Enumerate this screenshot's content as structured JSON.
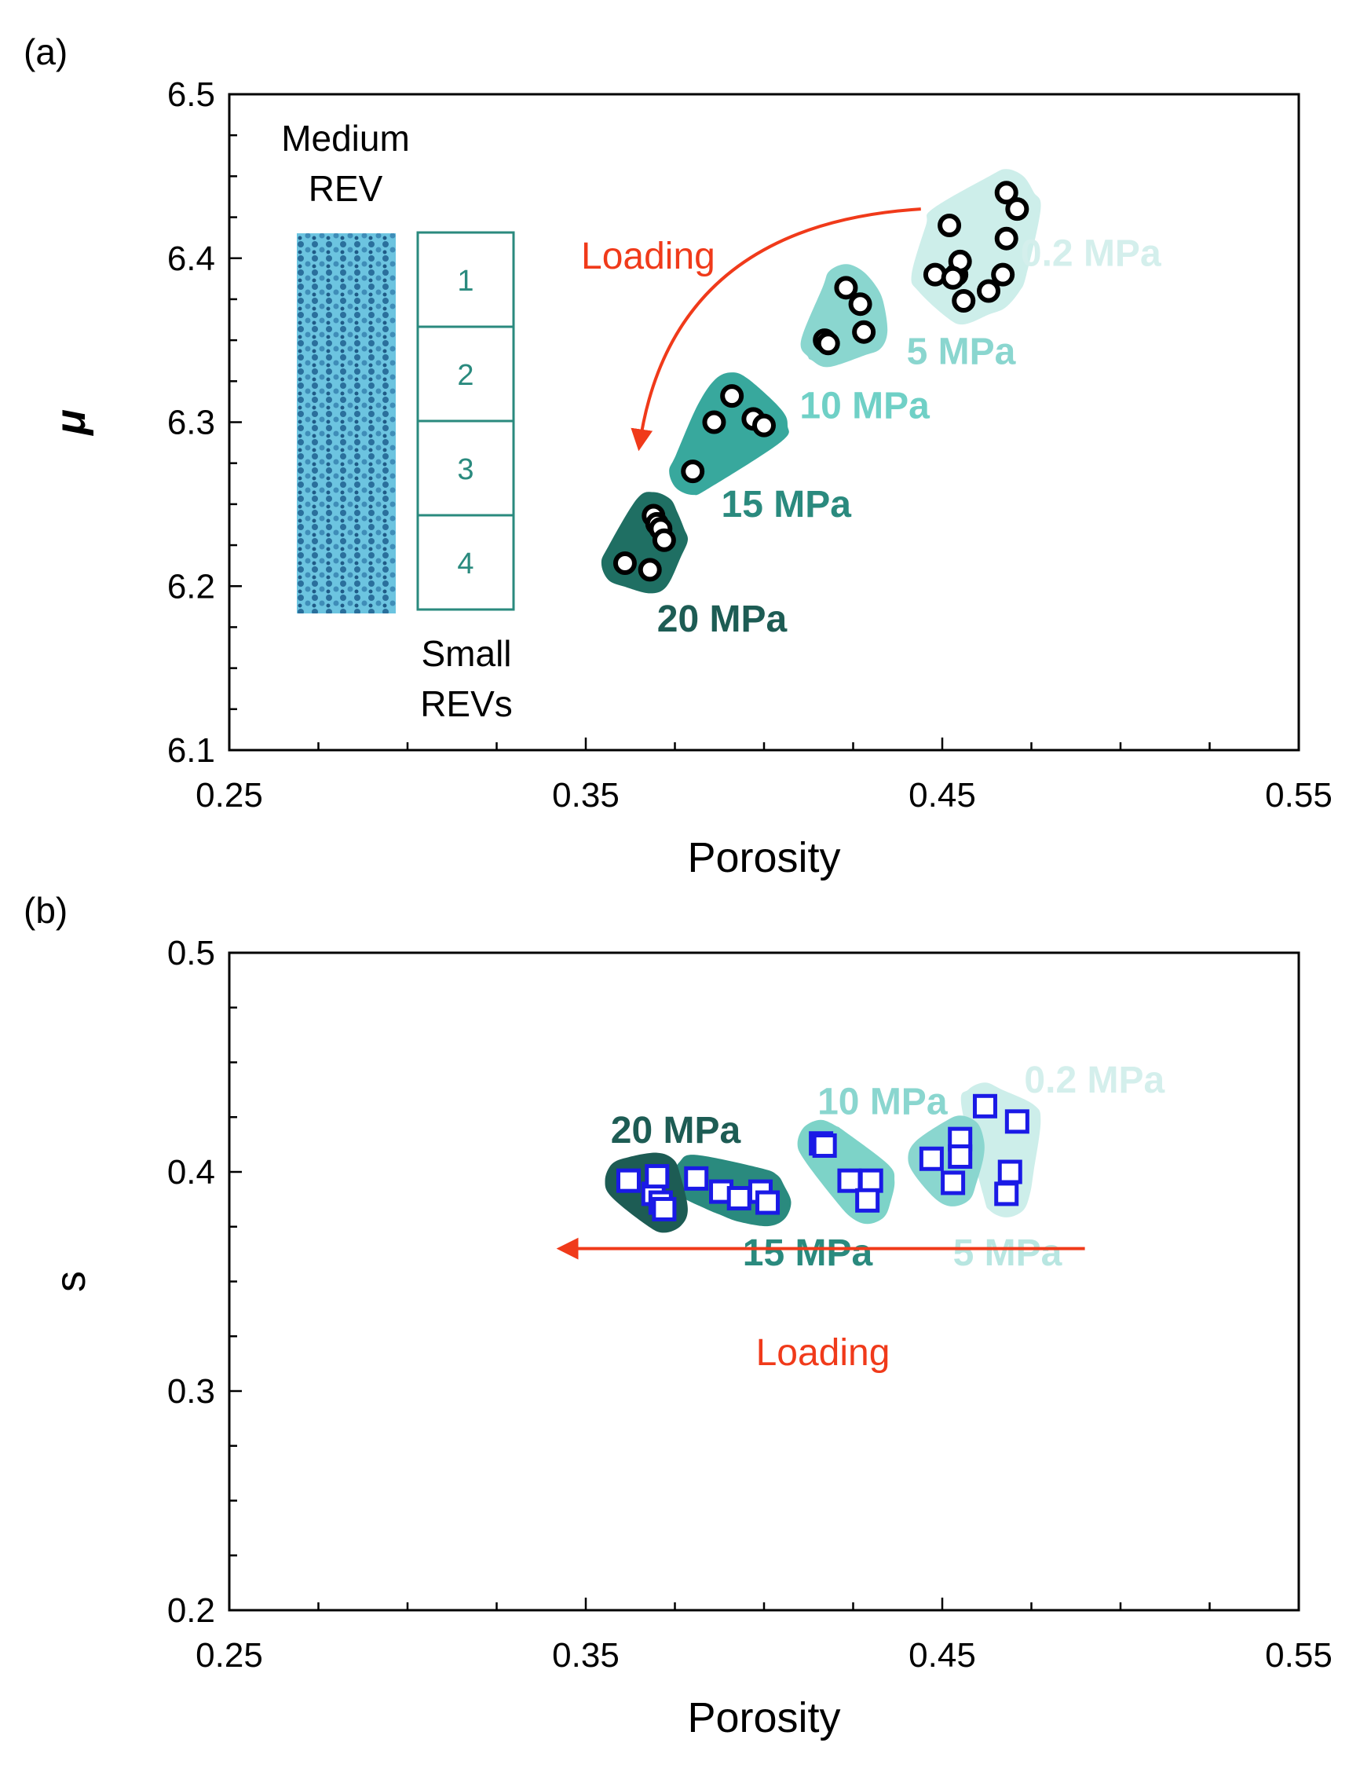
{
  "chart_data": [
    {
      "panel_label": "(a)",
      "type": "scatter",
      "xlabel": "Porosity",
      "ylabel": "μ",
      "xlim": [
        0.25,
        0.55
      ],
      "ylim": [
        6.1,
        6.5
      ],
      "xticks": [
        "0.25",
        "0.35",
        "0.45",
        "0.55"
      ],
      "yticks": [
        "6.1",
        "6.2",
        "6.3",
        "6.4",
        "6.5"
      ],
      "marker": "circle",
      "marker_edge_color": "#000000",
      "arrow": {
        "label": "Loading",
        "from": [
          0.444,
          6.43
        ],
        "to": [
          0.365,
          6.285
        ],
        "curved": true,
        "color": "#f03a1a"
      },
      "inset": {
        "title_line1": "Medium",
        "title_line2": "REV",
        "box_labels": [
          "1",
          "2",
          "3",
          "4"
        ],
        "caption_line1": "Small",
        "caption_line2": "REVs",
        "image_color": "#3a9ec4",
        "box_color": "#2a8a7e"
      },
      "series": [
        {
          "name": "0.2 MPa",
          "color": "#cdeeea",
          "label_color": "#d4efec",
          "label_pos": [
            0.472,
            6.403
          ],
          "x": [
            0.448,
            0.452,
            0.454,
            0.455,
            0.456,
            0.453,
            0.463,
            0.467,
            0.468,
            0.468,
            0.471
          ],
          "y": [
            6.39,
            6.42,
            6.39,
            6.398,
            6.374,
            6.388,
            6.38,
            6.39,
            6.412,
            6.44,
            6.43
          ]
        },
        {
          "name": "5 MPa",
          "color": "#8ad6cf",
          "label_color": "#8ad6cf",
          "label_pos": [
            0.44,
            6.343
          ],
          "x": [
            0.417,
            0.418,
            0.423,
            0.427,
            0.428
          ],
          "y": [
            6.35,
            6.348,
            6.382,
            6.372,
            6.355
          ]
        },
        {
          "name": "10 MPa",
          "color": "#38a89d",
          "label_color": "#6fd0c6",
          "label_pos": [
            0.41,
            6.31
          ],
          "x": [
            0.38,
            0.386,
            0.391,
            0.397,
            0.4
          ],
          "y": [
            6.27,
            6.3,
            6.316,
            6.302,
            6.298
          ]
        },
        {
          "name": "15 MPa",
          "color": "#1f6f63",
          "label_color": "#2a8a7e",
          "label_pos": [
            0.388,
            6.25
          ],
          "x": [
            0.361,
            0.368,
            0.369,
            0.37,
            0.371,
            0.372
          ],
          "y": [
            6.214,
            6.21,
            6.243,
            6.238,
            6.235,
            6.228
          ]
        },
        {
          "name": "20 MPa",
          "color": "#114a42",
          "label_color": "#1d5c54",
          "label_pos": [
            0.37,
            6.18
          ],
          "x": [],
          "y": []
        }
      ]
    },
    {
      "panel_label": "(b)",
      "type": "scatter",
      "xlabel": "Porosity",
      "ylabel": "s",
      "xlim": [
        0.25,
        0.55
      ],
      "ylim": [
        0.2,
        0.5
      ],
      "xticks": [
        "0.25",
        "0.35",
        "0.45",
        "0.55"
      ],
      "yticks": [
        "0.2",
        "0.3",
        "0.4",
        "0.5"
      ],
      "marker": "square",
      "marker_edge_color": "#1a1ae6",
      "arrow": {
        "label": "Loading",
        "from": [
          0.49,
          0.365
        ],
        "to": [
          0.343,
          0.365
        ],
        "curved": false,
        "color": "#f03a1a"
      },
      "series": [
        {
          "name": "0.2 MPa",
          "color": "#cdeeea",
          "label_color": "#d4efec",
          "label_pos": [
            0.473,
            0.442
          ],
          "x": [
            0.462,
            0.471,
            0.469,
            0.468
          ],
          "y": [
            0.43,
            0.423,
            0.4,
            0.39
          ]
        },
        {
          "name": "5 MPa",
          "color": "#8ad6cf",
          "label_color": "#b8e6e1",
          "label_pos": [
            0.453,
            0.363
          ],
          "x": [
            0.447,
            0.455,
            0.455,
            0.453
          ],
          "y": [
            0.406,
            0.415,
            0.407,
            0.395
          ]
        },
        {
          "name": "10 MPa",
          "color": "#7dd3c8",
          "label_color": "#8ad6cf",
          "label_pos": [
            0.415,
            0.432
          ],
          "x": [
            0.416,
            0.417,
            0.424,
            0.43,
            0.429
          ],
          "y": [
            0.413,
            0.412,
            0.396,
            0.396,
            0.387
          ]
        },
        {
          "name": "15 MPa",
          "color": "#2a8a7e",
          "label_color": "#2a8a7e",
          "label_pos": [
            0.394,
            0.363
          ],
          "x": [
            0.381,
            0.388,
            0.393,
            0.399,
            0.401
          ],
          "y": [
            0.397,
            0.391,
            0.388,
            0.391,
            0.386
          ]
        },
        {
          "name": "20 MPa",
          "color": "#1d5c54",
          "label_color": "#1d5c54",
          "label_pos": [
            0.357,
            0.419
          ],
          "x": [
            0.362,
            0.369,
            0.37,
            0.371,
            0.372
          ],
          "y": [
            0.396,
            0.39,
            0.398,
            0.386,
            0.383
          ]
        }
      ]
    }
  ]
}
